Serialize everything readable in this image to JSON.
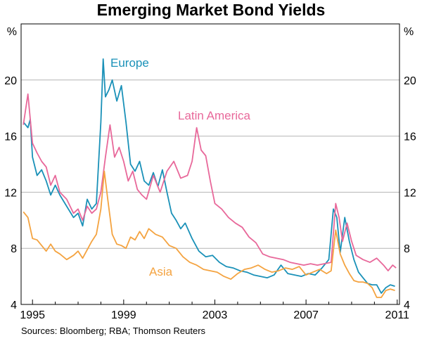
{
  "title": "Emerging Market Bond Yields",
  "source": "Sources: Bloomberg; RBA; Thomson Reuters",
  "colors": {
    "europe": "#1a91b8",
    "latin_america": "#e8689a",
    "asia": "#f4a340",
    "axis": "#000000",
    "grid": "#b5b5b5"
  },
  "chart_data": {
    "type": "line",
    "title": "Emerging Market Bond Yields",
    "unit_left": "%",
    "unit_right": "%",
    "xlim": [
      1994.5,
      2011.1
    ],
    "ylim": [
      4,
      24
    ],
    "y_ticks": [
      4,
      8,
      12,
      16,
      20
    ],
    "x_ticks": [
      1995,
      1999,
      2003,
      2007,
      2011
    ],
    "grid": true,
    "series": [
      {
        "name": "Europe",
        "key": "europe",
        "x": [
          1994.6,
          1994.8,
          1994.9,
          1995.0,
          1995.2,
          1995.4,
          1995.6,
          1995.8,
          1996.0,
          1996.2,
          1996.5,
          1996.8,
          1997.0,
          1997.2,
          1997.4,
          1997.6,
          1997.8,
          1998.0,
          1998.1,
          1998.2,
          1998.35,
          1998.5,
          1998.7,
          1998.9,
          1999.1,
          1999.3,
          1999.5,
          1999.7,
          1999.9,
          2000.1,
          2000.3,
          2000.5,
          2000.7,
          2000.9,
          2001.1,
          2001.3,
          2001.5,
          2001.7,
          2002.0,
          2002.3,
          2002.6,
          2002.9,
          2003.2,
          2003.5,
          2003.8,
          2004.1,
          2004.4,
          2004.7,
          2005.0,
          2005.3,
          2005.6,
          2005.9,
          2006.2,
          2006.5,
          2006.8,
          2007.1,
          2007.4,
          2007.7,
          2008.0,
          2008.2,
          2008.35,
          2008.5,
          2008.7,
          2008.9,
          2009.1,
          2009.3,
          2009.5,
          2009.7,
          2009.9,
          2010.1,
          2010.3,
          2010.5,
          2010.7,
          2010.9
        ],
        "values": [
          17.0,
          16.6,
          17.2,
          14.5,
          13.2,
          13.6,
          12.8,
          11.8,
          12.5,
          11.8,
          11.0,
          10.2,
          10.5,
          9.6,
          11.5,
          10.8,
          11.2,
          17.0,
          21.5,
          18.8,
          19.3,
          20.0,
          18.5,
          19.6,
          17.0,
          14.0,
          13.5,
          14.2,
          12.8,
          12.5,
          13.4,
          12.4,
          13.6,
          12.0,
          10.5,
          10.0,
          9.4,
          9.8,
          8.7,
          7.8,
          7.4,
          7.5,
          7.0,
          6.7,
          6.6,
          6.4,
          6.3,
          6.1,
          6.0,
          5.9,
          6.1,
          6.8,
          6.2,
          6.1,
          6.0,
          6.2,
          6.1,
          6.6,
          7.2,
          10.8,
          10.2,
          7.7,
          10.2,
          8.5,
          7.2,
          6.3,
          5.9,
          5.5,
          5.4,
          5.4,
          4.8,
          5.2,
          5.4,
          5.3
        ]
      },
      {
        "name": "Latin America",
        "key": "latin_america",
        "x": [
          1994.6,
          1994.8,
          1995.0,
          1995.2,
          1995.4,
          1995.6,
          1995.8,
          1996.0,
          1996.2,
          1996.5,
          1996.8,
          1997.0,
          1997.2,
          1997.4,
          1997.6,
          1997.8,
          1998.0,
          1998.2,
          1998.4,
          1998.6,
          1998.8,
          1999.0,
          1999.2,
          1999.4,
          1999.6,
          1999.8,
          2000.0,
          2000.3,
          2000.6,
          2000.9,
          2001.2,
          2001.5,
          2001.8,
          2002.0,
          2002.2,
          2002.4,
          2002.6,
          2002.8,
          2003.0,
          2003.3,
          2003.6,
          2003.9,
          2004.2,
          2004.5,
          2004.8,
          2005.1,
          2005.4,
          2005.7,
          2006.0,
          2006.3,
          2006.6,
          2006.9,
          2007.2,
          2007.5,
          2007.8,
          2008.1,
          2008.3,
          2008.45,
          2008.6,
          2008.8,
          2009.0,
          2009.2,
          2009.5,
          2009.8,
          2010.1,
          2010.4,
          2010.6,
          2010.8,
          2010.95
        ],
        "values": [
          16.8,
          19.0,
          15.5,
          14.8,
          14.2,
          13.8,
          12.5,
          13.2,
          12.0,
          11.5,
          10.5,
          10.8,
          10.0,
          11.0,
          10.5,
          10.8,
          12.0,
          14.5,
          16.8,
          14.5,
          15.2,
          14.2,
          12.8,
          13.5,
          12.2,
          11.8,
          11.5,
          13.2,
          12.0,
          13.5,
          14.2,
          13.0,
          13.2,
          14.2,
          16.6,
          15.0,
          14.6,
          12.8,
          11.2,
          10.8,
          10.2,
          9.8,
          9.5,
          8.8,
          8.4,
          7.6,
          7.4,
          7.3,
          7.2,
          7.0,
          6.9,
          6.8,
          6.9,
          6.8,
          6.9,
          7.0,
          11.2,
          10.2,
          8.5,
          9.8,
          8.5,
          7.5,
          7.2,
          7.0,
          7.3,
          6.8,
          6.4,
          6.8,
          6.6
        ]
      },
      {
        "name": "Asia",
        "key": "asia",
        "x": [
          1994.6,
          1994.8,
          1995.0,
          1995.2,
          1995.4,
          1995.6,
          1995.8,
          1996.0,
          1996.2,
          1996.5,
          1996.8,
          1997.0,
          1997.2,
          1997.4,
          1997.6,
          1997.8,
          1998.0,
          1998.15,
          1998.3,
          1998.5,
          1998.7,
          1998.9,
          1999.1,
          1999.3,
          1999.5,
          1999.7,
          1999.9,
          2000.1,
          2000.4,
          2000.7,
          2001.0,
          2001.3,
          2001.6,
          2001.9,
          2002.2,
          2002.5,
          2002.8,
          2003.1,
          2003.4,
          2003.7,
          2004.0,
          2004.3,
          2004.6,
          2004.9,
          2005.2,
          2005.5,
          2005.8,
          2006.1,
          2006.4,
          2006.7,
          2007.0,
          2007.3,
          2007.6,
          2007.9,
          2008.1,
          2008.3,
          2008.5,
          2008.7,
          2008.9,
          2009.1,
          2009.3,
          2009.5,
          2009.7,
          2009.9,
          2010.1,
          2010.3,
          2010.5,
          2010.7,
          2010.9
        ],
        "values": [
          10.6,
          10.2,
          8.7,
          8.6,
          8.2,
          7.8,
          8.3,
          7.8,
          7.6,
          7.2,
          7.5,
          7.8,
          7.3,
          7.9,
          8.5,
          9.0,
          10.8,
          13.5,
          11.5,
          9.0,
          8.3,
          8.2,
          8.0,
          8.8,
          8.6,
          9.2,
          8.7,
          9.4,
          9.0,
          8.8,
          8.2,
          8.0,
          7.4,
          7.0,
          6.8,
          6.5,
          6.4,
          6.3,
          6.0,
          5.8,
          6.2,
          6.5,
          6.6,
          6.8,
          6.5,
          6.3,
          6.4,
          6.6,
          6.5,
          6.7,
          6.1,
          6.3,
          6.5,
          6.2,
          6.4,
          9.3,
          7.6,
          6.8,
          6.2,
          5.7,
          5.6,
          5.6,
          5.5,
          5.2,
          4.5,
          4.5,
          5.0,
          5.1,
          5.0
        ]
      }
    ],
    "labels": [
      {
        "key": "europe",
        "text": "Europe"
      },
      {
        "key": "latin_america",
        "text": "Latin America"
      },
      {
        "key": "asia",
        "text": "Asia"
      }
    ]
  }
}
